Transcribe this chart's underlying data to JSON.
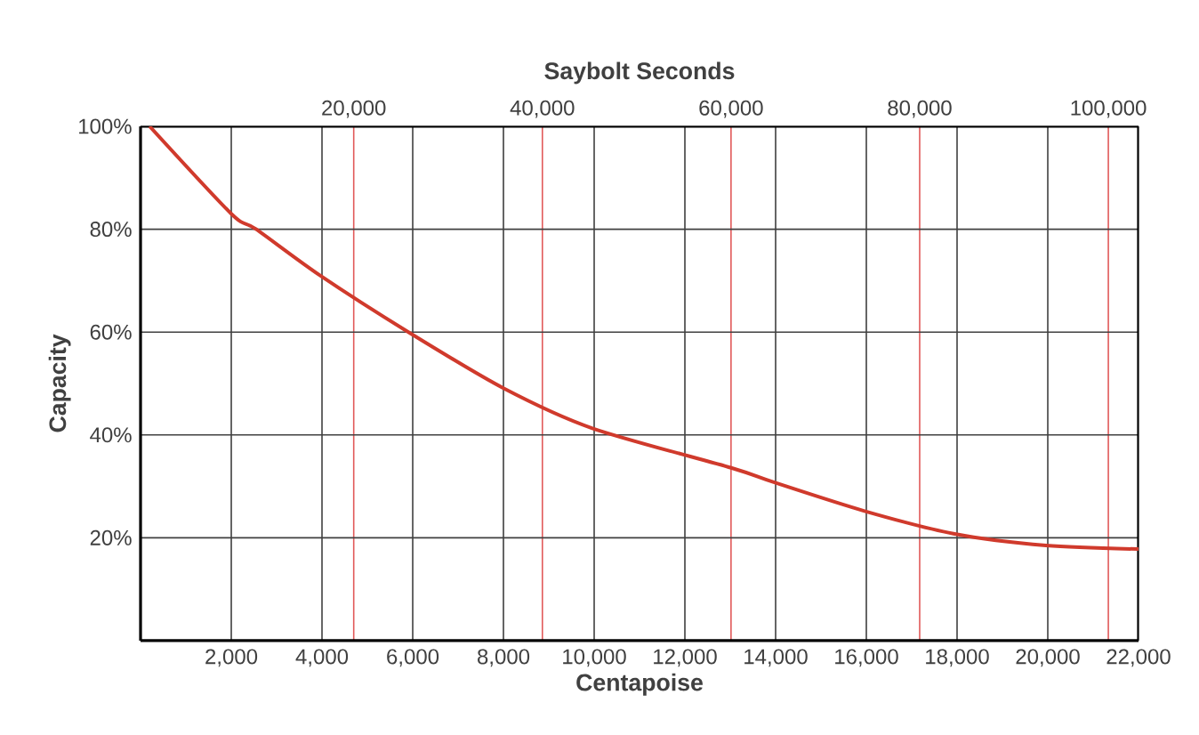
{
  "chart_data": {
    "type": "line",
    "xlabel": "Centapoise",
    "ylabel": "Capacity",
    "x2label": "Saybolt Seconds",
    "x": [
      200,
      2000,
      2550,
      3960,
      5905,
      8000,
      9960,
      13020,
      13960,
      15960,
      17920,
      19960,
      22000
    ],
    "values": [
      100,
      83,
      80,
      71,
      60,
      49.1,
      41.3,
      33.6,
      30.8,
      25.2,
      20.8,
      18.5,
      17.8
    ],
    "color": "#d03a2c",
    "grid": true,
    "xlim": [
      0,
      22000
    ],
    "xticks": [
      {
        "value": 2000,
        "label": "2,000"
      },
      {
        "value": 4000,
        "label": "4,000"
      },
      {
        "value": 6000,
        "label": "6,000"
      },
      {
        "value": 8000,
        "label": "8,000"
      },
      {
        "value": 10000,
        "label": "10,000"
      },
      {
        "value": 12000,
        "label": "12,000"
      },
      {
        "value": 14000,
        "label": "14,000"
      },
      {
        "value": 16000,
        "label": "16,000"
      },
      {
        "value": 18000,
        "label": "18,000"
      },
      {
        "value": 20000,
        "label": "20,000"
      },
      {
        "value": 22000,
        "label": "22,000"
      }
    ],
    "ylim": [
      0,
      100
    ],
    "yticks": [
      {
        "value": 20,
        "label": "20%"
      },
      {
        "value": 40,
        "label": "40%"
      },
      {
        "value": 60,
        "label": "60%"
      },
      {
        "value": 80,
        "label": "80%"
      },
      {
        "value": 100,
        "label": "100%"
      }
    ],
    "x2lim": [
      -2600,
      103200
    ],
    "x2ticks": [
      {
        "value": 20000,
        "label": "20,000"
      },
      {
        "value": 40000,
        "label": "40,000"
      },
      {
        "value": 60000,
        "label": "60,000"
      },
      {
        "value": 80000,
        "label": "80,000"
      },
      {
        "value": 100000,
        "label": "100,000"
      }
    ]
  }
}
